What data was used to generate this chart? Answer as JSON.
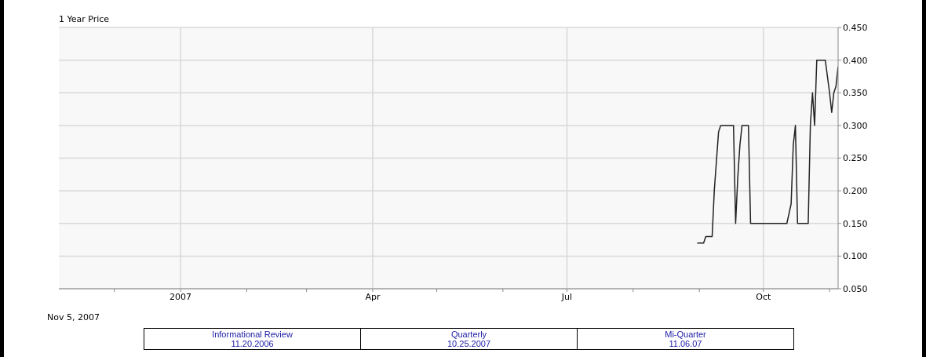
{
  "chart_data": {
    "type": "line",
    "title": "1 Year Price",
    "x": [
      "2007-08-31",
      "2007-09-03",
      "2007-09-04",
      "2007-09-07",
      "2007-09-08",
      "2007-09-10",
      "2007-09-11",
      "2007-09-17",
      "2007-09-18",
      "2007-09-19",
      "2007-09-20",
      "2007-09-21",
      "2007-09-24",
      "2007-09-25",
      "2007-10-12",
      "2007-10-14",
      "2007-10-15",
      "2007-10-16",
      "2007-10-17",
      "2007-10-22",
      "2007-10-23",
      "2007-10-24",
      "2007-10-25",
      "2007-10-26",
      "2007-10-30",
      "2007-11-01",
      "2007-11-02",
      "2007-11-03",
      "2007-11-04",
      "2007-11-05"
    ],
    "series": [
      {
        "color": "#222222",
        "values": [
          0.12,
          0.12,
          0.13,
          0.13,
          0.2,
          0.29,
          0.3,
          0.3,
          0.15,
          0.22,
          0.27,
          0.3,
          0.3,
          0.15,
          0.15,
          0.18,
          0.27,
          0.3,
          0.15,
          0.15,
          0.3,
          0.35,
          0.3,
          0.4,
          0.4,
          0.35,
          0.32,
          0.35,
          0.36,
          0.39
        ]
      }
    ],
    "xlim": [
      "2006-11-05",
      "2007-11-05"
    ],
    "xticks": [
      {
        "value": "2006-12-01",
        "label": null
      },
      {
        "value": "2007-01-01",
        "label": "2007"
      },
      {
        "value": "2007-02-01",
        "label": null
      },
      {
        "value": "2007-03-01",
        "label": null
      },
      {
        "value": "2007-04-01",
        "label": "Apr"
      },
      {
        "value": "2007-05-01",
        "label": null
      },
      {
        "value": "2007-06-01",
        "label": null
      },
      {
        "value": "2007-07-01",
        "label": "Jul"
      },
      {
        "value": "2007-08-01",
        "label": null
      },
      {
        "value": "2007-09-01",
        "label": null
      },
      {
        "value": "2007-10-01",
        "label": "Oct"
      },
      {
        "value": "2007-11-01",
        "label": null
      }
    ],
    "ylim": [
      0.05,
      0.45
    ],
    "yticks": [
      {
        "value": 0.05,
        "label": "0.050"
      },
      {
        "value": 0.1,
        "label": "0.100"
      },
      {
        "value": 0.15,
        "label": "0.150"
      },
      {
        "value": 0.2,
        "label": "0.200"
      },
      {
        "value": 0.25,
        "label": "0.250"
      },
      {
        "value": 0.3,
        "label": "0.300"
      },
      {
        "value": 0.35,
        "label": "0.350"
      },
      {
        "value": 0.4,
        "label": "0.400"
      },
      {
        "value": 0.45,
        "label": "0.450"
      }
    ],
    "grid": true,
    "marker": "none",
    "line_style": "solid",
    "annotations": [
      "Nov 5, 2007",
      "Informational Review\n11.20.2006",
      "Quarterly\n10.25.2007",
      "Mi-Quarter\n11.06.07"
    ]
  }
}
